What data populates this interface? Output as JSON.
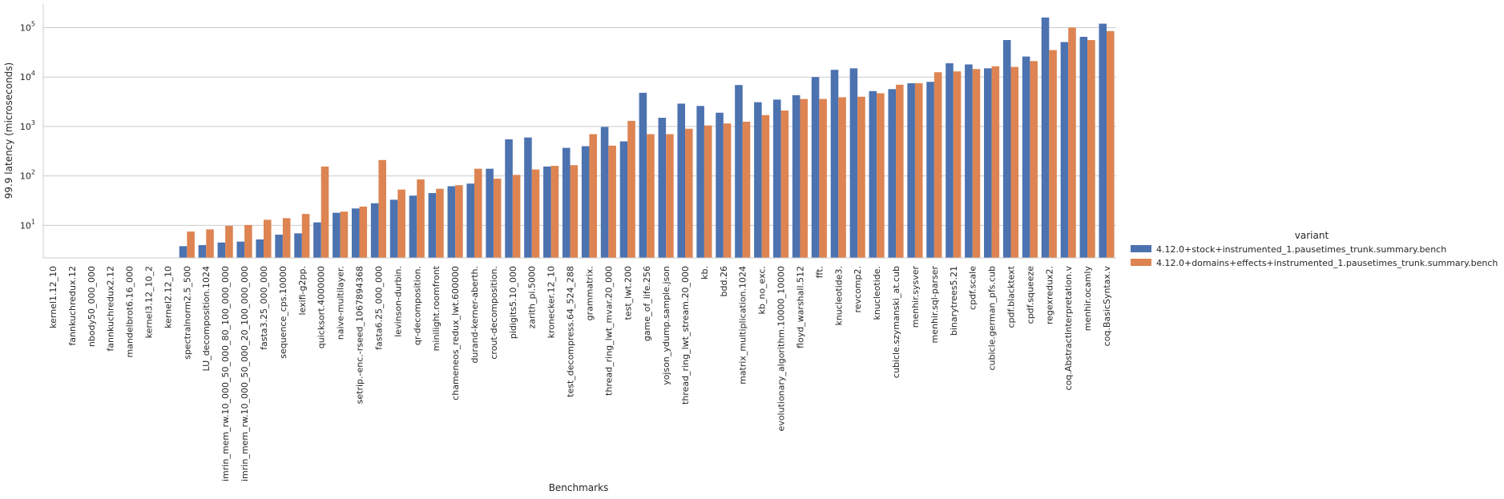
{
  "chart_data": {
    "type": "bar",
    "xlabel": "Benchmarks",
    "ylabel": "99.9 latency (microseconds)",
    "yscale": "log",
    "ylim": [
      2.2,
      300000
    ],
    "yticks": [
      10,
      100,
      1000,
      10000,
      100000
    ],
    "ytick_labels": [
      {
        "base": "10",
        "exp": "1"
      },
      {
        "base": "10",
        "exp": "2"
      },
      {
        "base": "10",
        "exp": "3"
      },
      {
        "base": "10",
        "exp": "4"
      },
      {
        "base": "10",
        "exp": "5"
      }
    ],
    "grid": "horizontal",
    "legend": {
      "title": "variant",
      "position": "right"
    },
    "categories": [
      "kernel1.12_10",
      "fannkuchredux.12",
      "nbody50_000_000",
      "fannkuchredux2.12",
      "mandelbrot6.16_000",
      "kernel3.12_10_2",
      "kernel2.12_10",
      "spectralnorm2.5_500",
      "LU_decomposition.1024",
      "imrin_mem_rw.10_000_50_000_80_100_000_000",
      "imrin_mem_rw.10_000_50_000_20_100_000_000",
      "fasta3.25_000_000",
      "sequence_cps.10000",
      "lexifi-g2pp.",
      "quicksort.4000000",
      "naive-multilayer.",
      "setrip.-enc.-rseed_1067894368",
      "fasta6.25_000_000",
      "levinson-durbin.",
      "qr-decomposition.",
      "minilight.roomfront",
      "chameneos_redux_lwt.600000",
      "durand-kerner-aberth.",
      "crout-decomposition.",
      "pidigits5.10_000",
      "zarith_pi.5000",
      "kronecker.12_10",
      "test_decompress.64_524_288",
      "grammatrix.",
      "thread_ring_lwt_mvar.20_000",
      "test_lwt.200",
      "game_of_life.256",
      "yojson_ydump.sample.json",
      "thread_ring_lwt_stream.20_000",
      "kb.",
      "bdd.26",
      "matrix_multiplication.1024",
      "kb_no_exc.",
      "evolutionary_algorithm.10000_10000",
      "floyd_warshall.512",
      "fft.",
      "knucleotide3.",
      "revcomp2.",
      "knucleotide.",
      "cubicle.szymanski_at.cub",
      "menhir.sysver",
      "menhir.sql-parser",
      "binarytrees5.21",
      "cpdf.scale",
      "cubicle.german_pfs.cub",
      "cpdf.blacktext",
      "cpdf.squeeze",
      "regexredux2.",
      "coq.AbstractInterpretation.v",
      "menhir.ocamly",
      "coq.BasicSyntax.v"
    ],
    "series": [
      {
        "name": "4.12.0+stock+instrumented_1.pausetimes_trunk.summary.bench",
        "color": "#4c72b0",
        "values": [
          null,
          null,
          null,
          null,
          null,
          null,
          null,
          3.8,
          4,
          4.5,
          4.7,
          5.2,
          6.5,
          6.9,
          11.5,
          18,
          22,
          28,
          33,
          40,
          45,
          62,
          70,
          140,
          550,
          600,
          155,
          370,
          400,
          980,
          500,
          4800,
          1500,
          2900,
          2600,
          1900,
          6900,
          3100,
          3500,
          4300,
          10000,
          14000,
          15000,
          5200,
          5700,
          7500,
          8000,
          19000,
          18000,
          15000,
          56000,
          26000,
          160000,
          51000,
          65000,
          120000
        ]
      },
      {
        "name": "4.12.0+domains+effects+instrumented_1.pausetimes_trunk.summary.bench",
        "color": "#dd8452",
        "values": [
          null,
          null,
          null,
          null,
          null,
          null,
          null,
          7.5,
          8.3,
          9.8,
          10.2,
          13,
          14,
          17,
          155,
          19,
          24,
          210,
          53,
          85,
          55,
          65,
          140,
          88,
          105,
          135,
          160,
          165,
          700,
          410,
          1300,
          700,
          700,
          900,
          1050,
          1150,
          1250,
          1700,
          2100,
          3600,
          3600,
          3900,
          4000,
          4700,
          7000,
          7500,
          12500,
          13000,
          14500,
          16500,
          16000,
          21000,
          35000,
          100000,
          56000,
          85000
        ]
      }
    ]
  }
}
